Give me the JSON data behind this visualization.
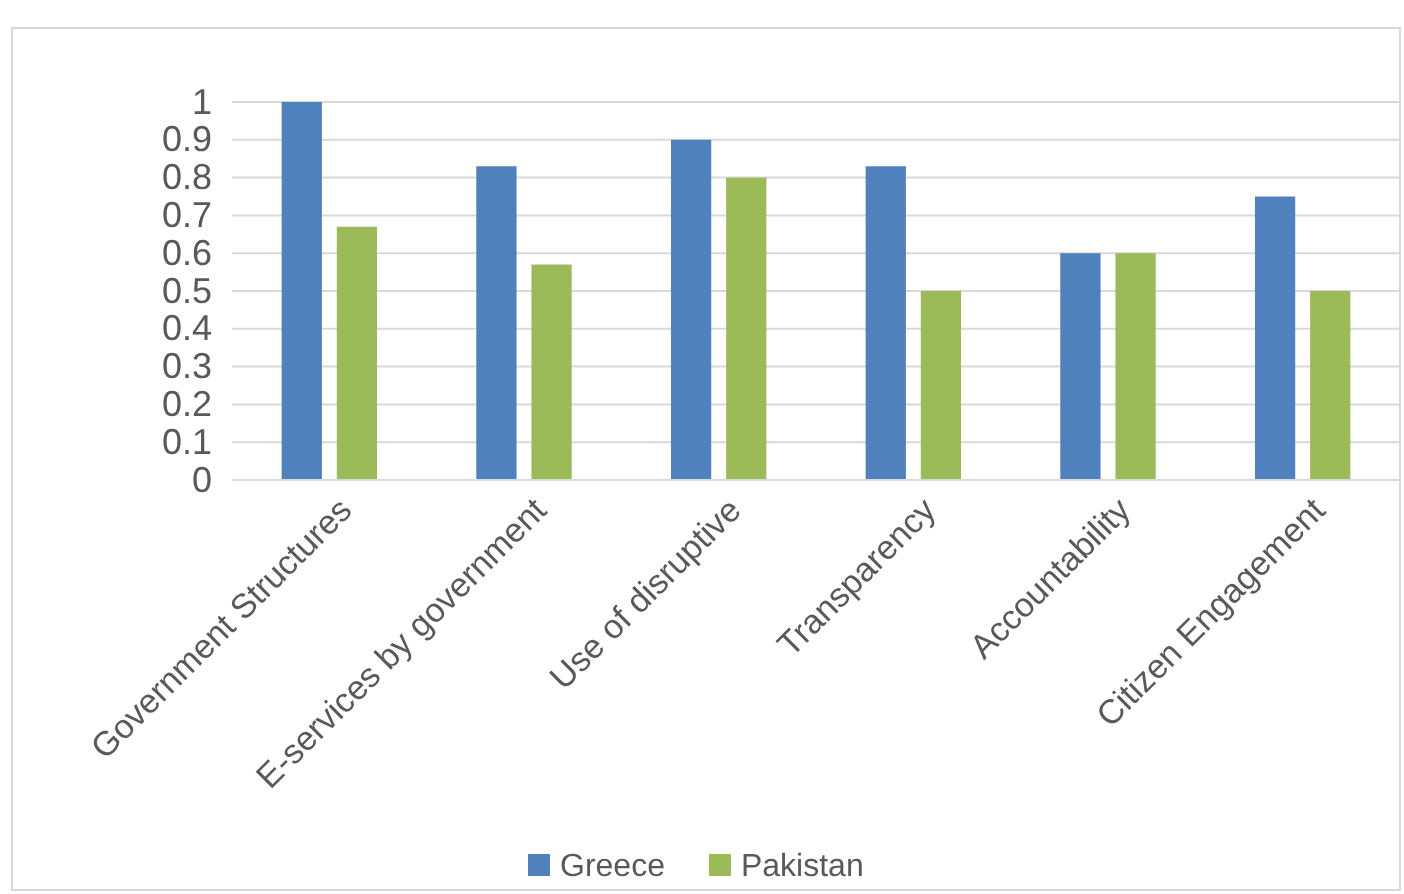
{
  "chart_data": {
    "type": "bar",
    "categories": [
      "Government Structures",
      "E-services by government",
      "Use of disruptive",
      "Transparency",
      "Accountability",
      "Citizen Engagement"
    ],
    "series": [
      {
        "name": "Greece",
        "color": "#4f81bd",
        "values": [
          1,
          0.83,
          0.9,
          0.83,
          0.6,
          0.75
        ]
      },
      {
        "name": "Pakistan",
        "color": "#9bbb59",
        "values": [
          0.67,
          0.57,
          0.8,
          0.5,
          0.6,
          0.5
        ]
      }
    ],
    "ylim": [
      0,
      1
    ],
    "yticks": [
      0,
      0.1,
      0.2,
      0.3,
      0.4,
      0.5,
      0.6,
      0.7,
      0.8,
      0.9,
      1
    ],
    "grid": "y",
    "legend": "bottom"
  }
}
